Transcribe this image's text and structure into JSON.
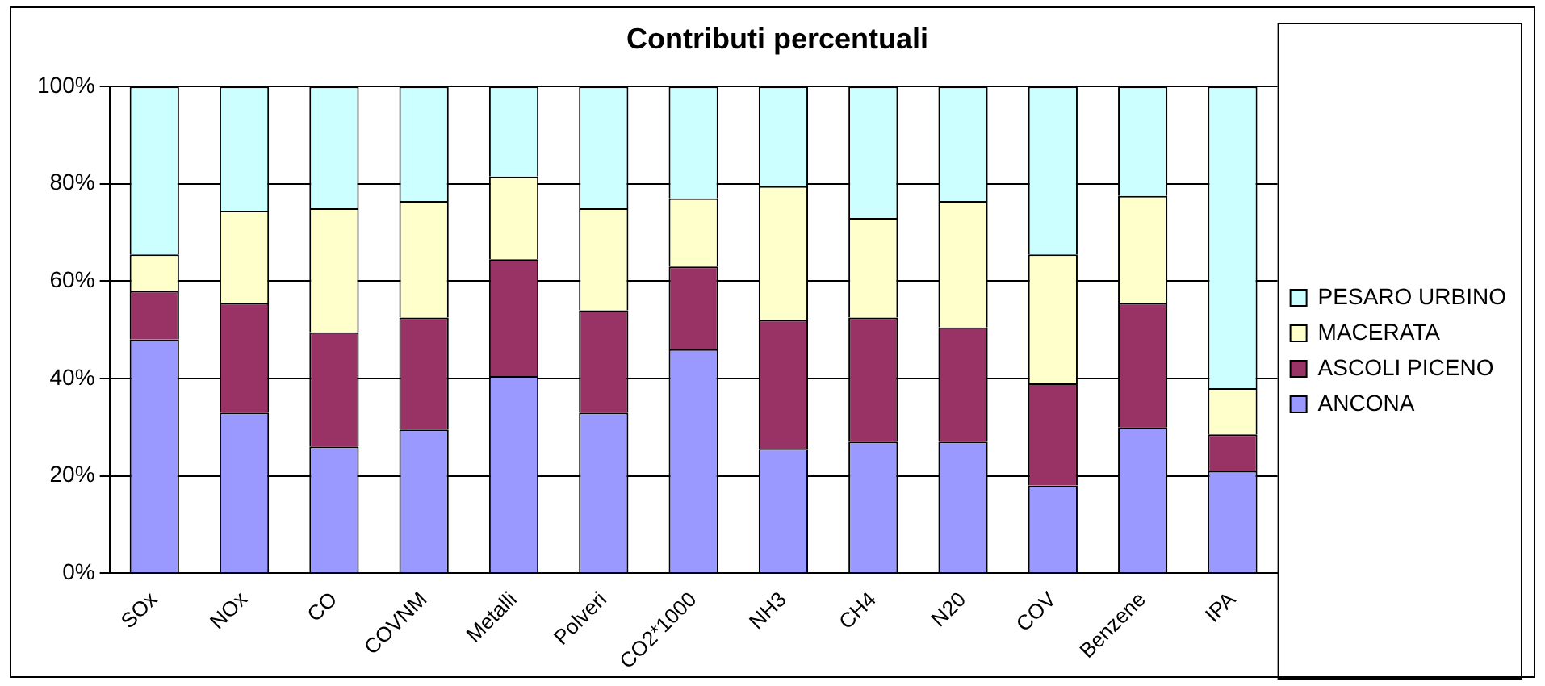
{
  "chart_data": {
    "type": "bar",
    "title": "Contributi percentuali",
    "stacked": true,
    "categories": [
      "SOx",
      "NOx",
      "CO",
      "COVNM",
      "Metalli",
      "Polveri",
      "CO2*1000",
      "NH3",
      "CH4",
      "N20",
      "COV",
      "Benzene",
      "IPA"
    ],
    "series": [
      {
        "name": "ANCONA",
        "color": "#9999ff",
        "values": [
          48,
          33,
          26,
          29.5,
          40.5,
          33,
          46,
          25.5,
          27,
          27,
          18,
          30,
          21
        ]
      },
      {
        "name": "ASCOLI PICENO",
        "color": "#993366",
        "values": [
          10,
          22.5,
          23.5,
          23,
          24,
          21,
          17,
          26.5,
          25.5,
          23.5,
          21,
          25.5,
          7.5
        ]
      },
      {
        "name": "MACERATA",
        "color": "#ffffcc",
        "values": [
          7.5,
          19,
          25.5,
          24,
          17,
          21,
          14,
          27.5,
          20.5,
          26,
          26.5,
          22,
          9.5
        ]
      },
      {
        "name": "PESARO URBINO",
        "color": "#ccffff",
        "values": [
          34.5,
          25.5,
          25,
          23.5,
          18.5,
          25,
          23,
          20.5,
          27,
          23.5,
          34.5,
          22.5,
          62
        ]
      }
    ],
    "ylim": [
      0,
      100
    ],
    "yticks": [
      {
        "value": 0,
        "label": "0%"
      },
      {
        "value": 20,
        "label": "20%"
      },
      {
        "value": 40,
        "label": "40%"
      },
      {
        "value": 60,
        "label": "60%"
      },
      {
        "value": 80,
        "label": "80%"
      },
      {
        "value": 100,
        "label": "100%"
      }
    ],
    "grid": "y",
    "legend": "right"
  }
}
